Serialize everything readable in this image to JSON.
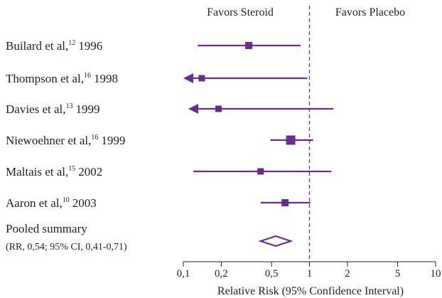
{
  "chart_data": {
    "type": "forest",
    "header_left": "Favors Steroid",
    "header_right": "Favors Placebo",
    "authors": [
      "Builard et al,",
      "Thompson et al,",
      "Davies et al,",
      "Niewoehner et al,",
      "Maltais et al,",
      "Aaron et al,"
    ],
    "refs": [
      "12",
      "16",
      "13",
      "16",
      "15",
      "10"
    ],
    "years": [
      "1996",
      "1998",
      "1999",
      "1999",
      "2002",
      "2003"
    ],
    "estimates": [
      0.33,
      0.14,
      0.19,
      0.71,
      0.41,
      0.64
    ],
    "lower": [
      0.13,
      null,
      null,
      0.49,
      0.12,
      0.41
    ],
    "upper": [
      0.85,
      0.96,
      1.55,
      1.07,
      1.49,
      1.02
    ],
    "weights": [
      10,
      9,
      9,
      13,
      9,
      10
    ],
    "pooled_label": "Pooled summary",
    "pooled_text": "(RR, 0,54; 95% CI, 0,41-0,71)",
    "pooled": {
      "estimate": 0.54,
      "lower": 0.41,
      "upper": 0.71
    },
    "reference": 1,
    "xlim": [
      0.1,
      10
    ],
    "log_x": true,
    "xticks": [
      {
        "value": 0.1,
        "label": "0,1"
      },
      {
        "value": 0.2,
        "label": "0,2"
      },
      {
        "value": 0.5,
        "label": "0,5"
      },
      1,
      2,
      5,
      10
    ],
    "xlabel": "Relative Risk (95% Confidence Interval)",
    "color": "#6a2c8e"
  }
}
